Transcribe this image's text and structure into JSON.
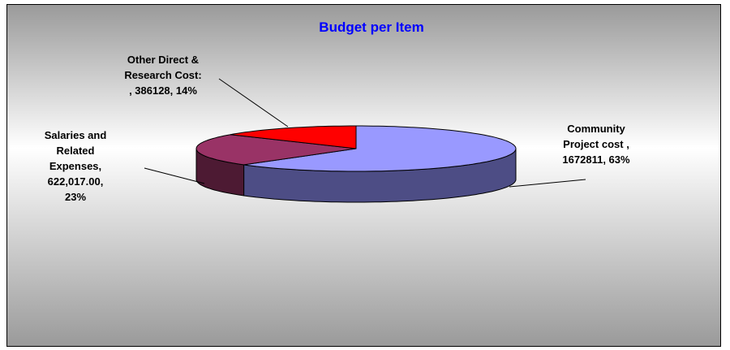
{
  "chart_data": {
    "type": "pie",
    "title": "Budget per Item",
    "categories": [
      "Community Project cost",
      "Salaries and Related Expenses",
      "Other Direct & Research Cost:"
    ],
    "values": [
      1672811,
      622017,
      386128
    ],
    "labels": [
      [
        "Community",
        "Project cost ,",
        "1672811, 63%"
      ],
      [
        "Salaries and",
        "Related",
        "Expenses,",
        "622,017.00,",
        "23%"
      ],
      [
        "Other Direct &",
        "Research Cost:",
        ", 386128, 14%"
      ]
    ],
    "colors": [
      "#9999ff",
      "#993366",
      "#ff0000"
    ],
    "side_colors": [
      "#4d4d85",
      "#4d1a33",
      "#800000"
    ],
    "three_d": true
  }
}
